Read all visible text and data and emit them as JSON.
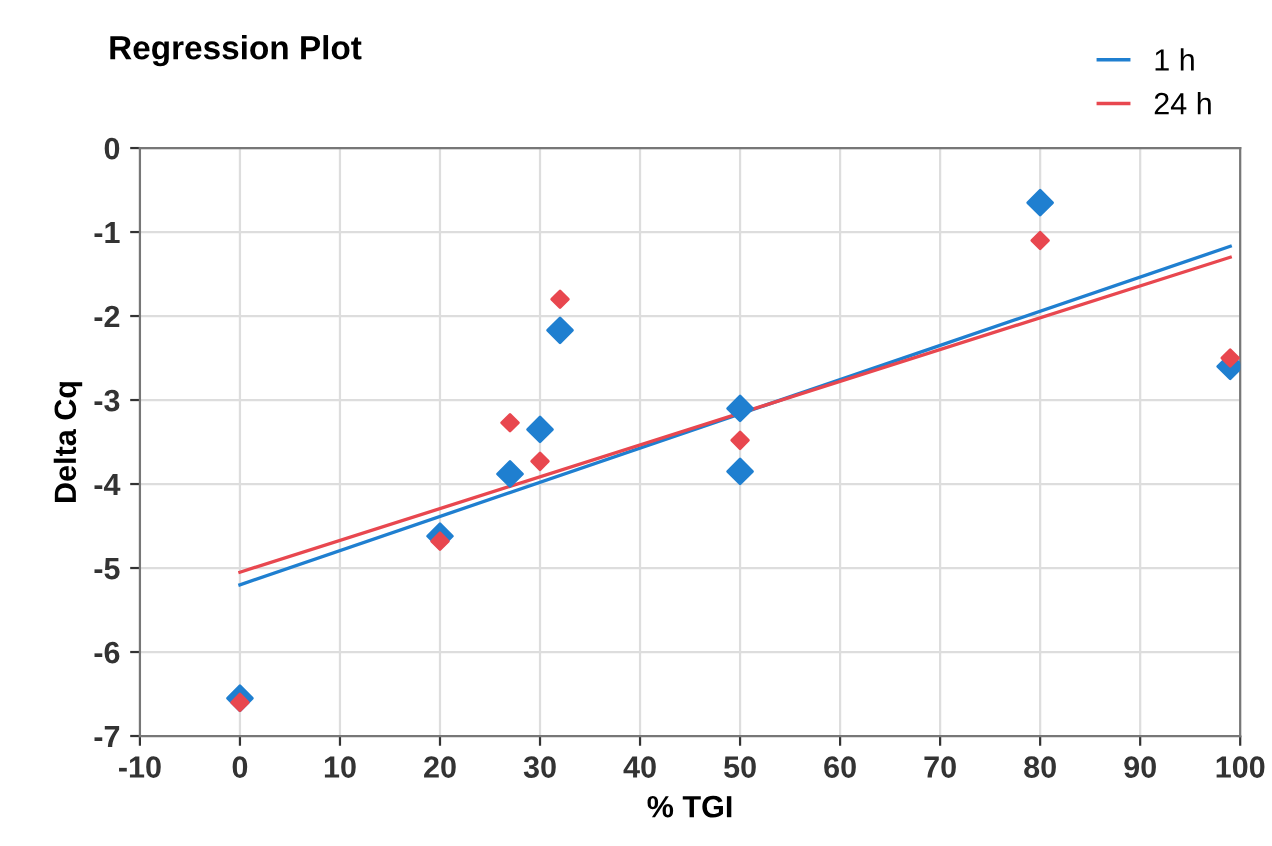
{
  "chart_data": {
    "type": "scatter",
    "title": "Regression Plot",
    "xlabel": "% TGI",
    "ylabel": "Delta Cq",
    "xlim": [
      -10,
      100
    ],
    "ylim": [
      -7,
      0
    ],
    "xticks": [
      -10,
      0,
      10,
      20,
      30,
      40,
      50,
      60,
      70,
      80,
      90,
      100
    ],
    "yticks": [
      -7,
      -6,
      -5,
      -4,
      -3,
      -2,
      -1,
      0
    ],
    "grid": true,
    "legend": "top right",
    "marker": "diamond",
    "series": [
      {
        "color": "#1f7fd0",
        "x": [
          0,
          20,
          27,
          30,
          32,
          50,
          50,
          80,
          99
        ],
        "values": [
          -6.55,
          -4.62,
          -3.88,
          -3.35,
          -2.17,
          -3.1,
          -3.85,
          -0.65,
          -2.6
        ]
      },
      {
        "color": "#e8474f",
        "x": [
          0,
          20,
          27,
          30,
          32,
          50,
          80,
          99
        ],
        "values": [
          -6.6,
          -4.68,
          -3.27,
          -3.73,
          -1.8,
          -3.48,
          -1.1,
          -2.5
        ]
      },
      {
        "type": "line",
        "name": "1 h",
        "marker": "none",
        "color": "#1f7fd0",
        "x": [
          0,
          99
        ],
        "values": [
          -5.2,
          -1.17
        ]
      },
      {
        "type": "line",
        "name": "24 h",
        "marker": "none",
        "color": "#e8474f",
        "x": [
          0,
          99
        ],
        "values": [
          -5.05,
          -1.3
        ]
      }
    ]
  }
}
